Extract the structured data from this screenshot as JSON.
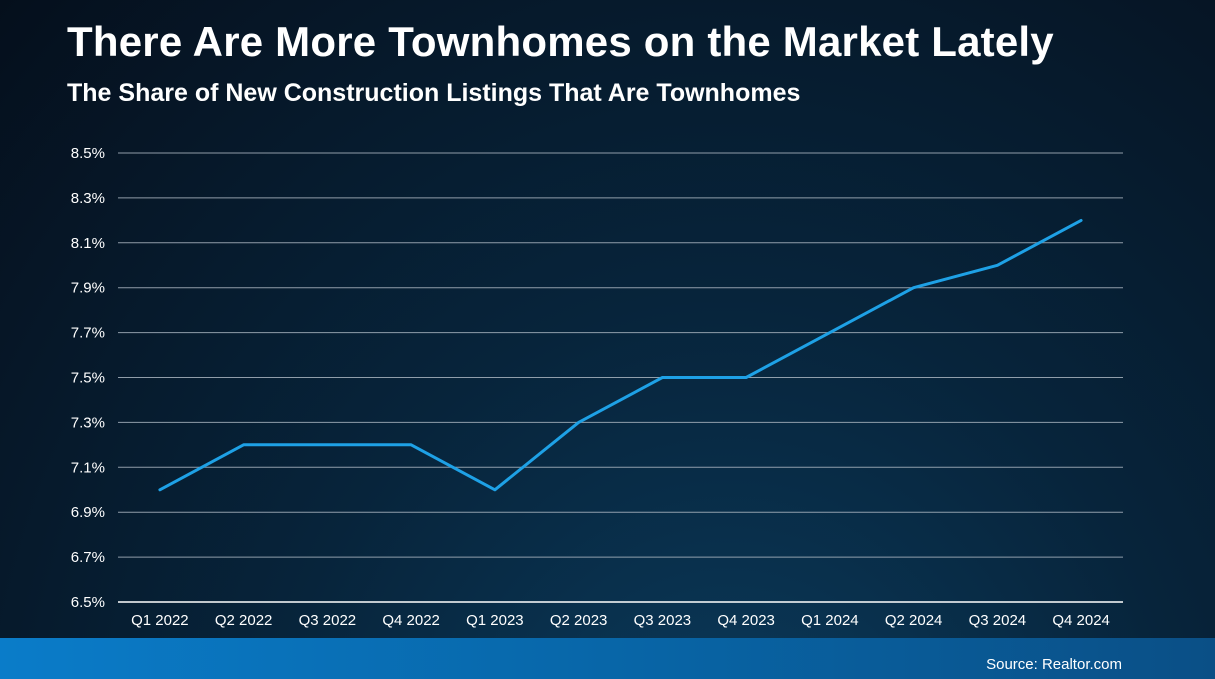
{
  "chart_data": {
    "type": "line",
    "title": "There Are More Townhomes on the Market Lately",
    "subtitle": "The Share of New Construction Listings That Are Townhomes",
    "categories": [
      "Q1 2022",
      "Q2 2022",
      "Q3 2022",
      "Q4 2022",
      "Q1 2023",
      "Q2 2023",
      "Q3 2023",
      "Q4 2023",
      "Q1 2024",
      "Q2 2024",
      "Q3 2024",
      "Q4 2024"
    ],
    "series": [
      {
        "values": [
          7.0,
          7.2,
          7.2,
          7.2,
          7.0,
          7.3,
          7.5,
          7.5,
          7.7,
          7.9,
          8.0,
          8.2
        ],
        "color": "#1ea1e6"
      }
    ],
    "ylim": [
      6.5,
      8.5
    ],
    "yticks": [
      6.5,
      6.7,
      6.9,
      7.1,
      7.3,
      7.5,
      7.7,
      7.9,
      8.1,
      8.3,
      8.5
    ],
    "ytick_labels": [
      "6.5%",
      "6.7%",
      "6.9%",
      "7.1%",
      "7.3%",
      "7.5%",
      "7.7%",
      "7.9%",
      "8.1%",
      "8.3%",
      "8.5%"
    ],
    "grid": true,
    "legend": "none"
  },
  "source": "Source: Realtor.com"
}
